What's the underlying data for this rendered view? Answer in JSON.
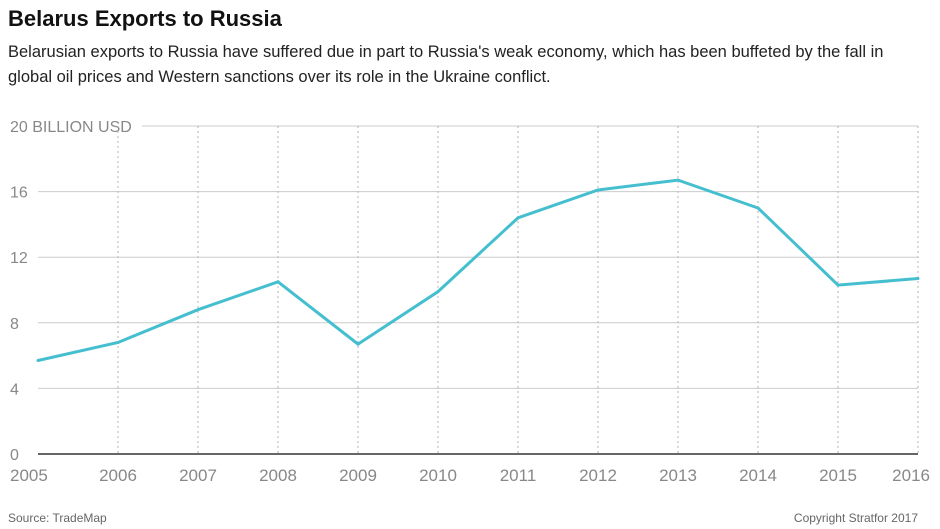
{
  "header": {
    "title": "Belarus Exports to Russia",
    "subtitle": "Belarusian exports to Russia have suffered due in part to Russia's weak economy, which has been buffeted by the fall in global oil prices and Western sanctions over its role in the Ukraine conflict."
  },
  "footer": {
    "source": "Source: TradeMap",
    "copyright": "Copyright Stratfor 2017"
  },
  "chart_data": {
    "type": "line",
    "title": "Belarus Exports to Russia",
    "ylabel": "",
    "xlabel": "",
    "x": [
      2005,
      2006,
      2007,
      2008,
      2009,
      2010,
      2011,
      2012,
      2013,
      2014,
      2015,
      2016
    ],
    "series": [
      {
        "name": "",
        "values": [
          5.7,
          6.8,
          8.8,
          10.5,
          6.7,
          9.9,
          14.4,
          16.1,
          16.7,
          15.0,
          10.3,
          10.7
        ],
        "color": "#45bfcf"
      }
    ],
    "ylim": [
      0,
      20
    ],
    "yticks": [
      0,
      4,
      8,
      12,
      16,
      20
    ],
    "ytick_labels": [
      "0",
      "4",
      "8",
      "12",
      "16",
      "20 BILLION USD"
    ],
    "xtick_labels": [
      "2005",
      "2006",
      "2007",
      "2008",
      "2009",
      "2010",
      "2011",
      "2012",
      "2013",
      "2014",
      "2015",
      "2016"
    ],
    "grid": {
      "horizontal": true,
      "vertical": "dotted"
    },
    "colors": {
      "line": "#45bfcf",
      "grid": "#cccccc",
      "axis": "#333333",
      "tick_text": "#888888"
    }
  }
}
